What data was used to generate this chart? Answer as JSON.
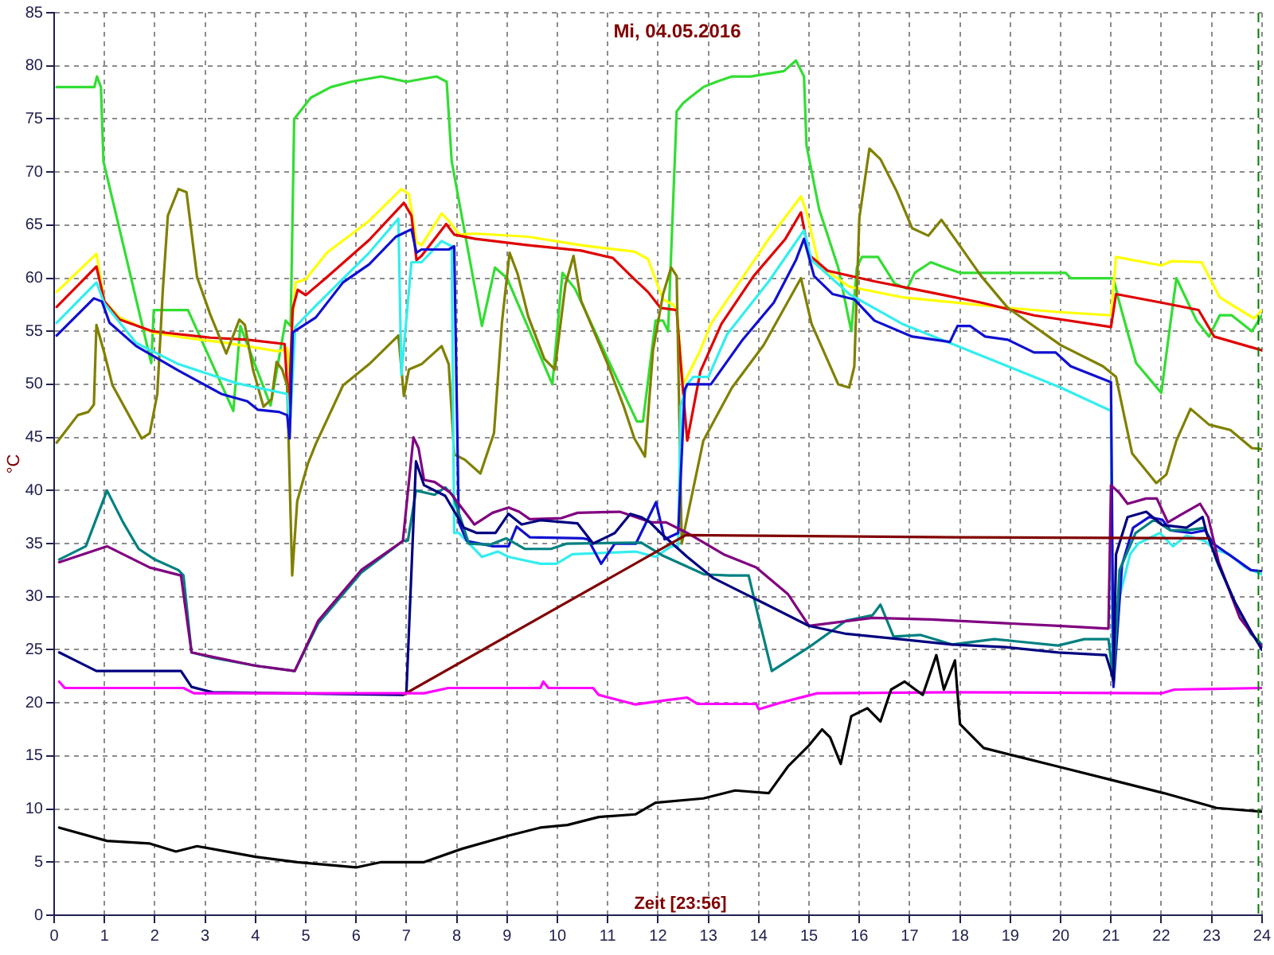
{
  "chart_data": {
    "type": "line",
    "title": "Mi, 04.05.2016",
    "xlabel": "Zeit [23:56]",
    "ylabel": "°C",
    "xlim": [
      0,
      24
    ],
    "xticks": [
      0,
      1,
      2,
      3,
      4,
      5,
      6,
      7,
      8,
      9,
      10,
      11,
      12,
      13,
      14,
      15,
      16,
      17,
      18,
      19,
      20,
      21,
      22,
      23,
      24
    ],
    "ylim": [
      0,
      85
    ],
    "yticks": [
      0,
      5,
      10,
      15,
      20,
      25,
      30,
      35,
      40,
      45,
      50,
      55,
      60,
      65,
      70,
      75,
      80,
      85
    ],
    "grid": true,
    "marker": "none",
    "ref_lines": [
      {
        "axis": "x",
        "value": 23.93,
        "color": "#008000",
        "line_style": "dashed"
      }
    ],
    "series": [
      {
        "color": "#000000",
        "x": [
          0.1,
          1.05,
          1.9,
          2.42,
          2.84,
          4.0,
          4.83,
          6.0,
          6.5,
          7.35,
          8.1,
          9.03,
          9.66,
          10.2,
          10.82,
          11.55,
          11.95,
          12.9,
          13.53,
          14.2,
          14.58,
          15.0,
          15.26,
          15.42,
          15.63,
          15.84,
          16.16,
          16.42,
          16.63,
          16.9,
          17.26,
          17.53,
          17.68,
          17.9,
          18.0,
          18.47,
          19.1,
          19.95,
          21.0,
          22.05,
          23.1,
          24
        ],
        "values": [
          8.25,
          7,
          6.75,
          6,
          6.5,
          5.5,
          5,
          4.5,
          5,
          5,
          6.25,
          7.5,
          8.25,
          8.5,
          9.25,
          9.5,
          10.6,
          11,
          11.75,
          11.5,
          14,
          16,
          17.5,
          16.75,
          14.25,
          18.75,
          19.5,
          18.25,
          21.25,
          22,
          20.75,
          24.5,
          21.25,
          24,
          18,
          15.75,
          15,
          14,
          12.75,
          11.5,
          10.1,
          9.75
        ]
      },
      {
        "color": "#ff00ff",
        "x": [
          0.1,
          0.21,
          2.57,
          2.78,
          7.35,
          7.83,
          9.66,
          9.72,
          9.82,
          10.71,
          10.82,
          11.55,
          12.16,
          12.58,
          12.79,
          13.95,
          14.0,
          14.42,
          15.16,
          17.84,
          22.0,
          22.26,
          24
        ],
        "values": [
          22,
          21.4,
          21.4,
          20.9,
          20.9,
          21.4,
          21.4,
          22,
          21.4,
          21.4,
          20.75,
          19.85,
          20.25,
          20.5,
          19.9,
          19.9,
          19.4,
          20,
          20.9,
          21,
          20.9,
          21.25,
          21.4
        ]
      },
      {
        "color": "#800000",
        "x": [
          6.95,
          12.55,
          17.9,
          22.93
        ],
        "values": [
          20.8,
          35.8,
          35.6,
          35.5
        ]
      },
      {
        "color": "#000080",
        "x": [
          0.1,
          0.42,
          0.84,
          2.52,
          2.73,
          3.15,
          6.93,
          7.0,
          7.19,
          7.35,
          7.77,
          8.14,
          8.4,
          8.77,
          9.03,
          9.29,
          9.66,
          10.4,
          10.71,
          11.14,
          11.45,
          11.66,
          11.84,
          12.05,
          12.58,
          13.1,
          13.63,
          14.16,
          15.0,
          15.74,
          16.8,
          17.84,
          18.9,
          19.95,
          20.9,
          21.0,
          21.05,
          21.1,
          21.33,
          21.7,
          22.02,
          22.5,
          22.82,
          22.9,
          23.14,
          23.46,
          23.78,
          24
        ],
        "values": [
          24.75,
          24,
          23,
          23,
          21.5,
          21,
          20.75,
          21,
          42.75,
          40.5,
          39.5,
          36.5,
          36,
          36,
          37.8,
          36.8,
          37.2,
          36.9,
          35,
          36,
          37.8,
          37.5,
          37,
          36,
          33.75,
          31.75,
          30.5,
          29.25,
          27.25,
          26.5,
          26,
          25.5,
          25.25,
          24.75,
          24.5,
          23,
          22,
          34,
          37.5,
          38,
          36.75,
          36.5,
          37.5,
          36,
          33,
          29.5,
          26.75,
          25
        ]
      },
      {
        "color": "#800080",
        "x": [
          0.1,
          1.05,
          1.9,
          2.52,
          2.73,
          4.0,
          4.78,
          5.25,
          6.1,
          6.93,
          7.14,
          7.24,
          7.35,
          7.56,
          7.87,
          8.35,
          8.71,
          9.03,
          9.24,
          9.45,
          10.08,
          10.4,
          11.24,
          11.87,
          12.16,
          12.58,
          13.3,
          13.95,
          14.58,
          15.0,
          16.26,
          17.42,
          18.9,
          19.95,
          20.95,
          21.0,
          21.17,
          21.33,
          21.7,
          21.91,
          22.13,
          22.4,
          22.77,
          22.93,
          23.14,
          23.56,
          24
        ],
        "values": [
          33.25,
          34.75,
          32.75,
          32,
          24.75,
          23.5,
          23,
          27.75,
          32.5,
          35.25,
          45,
          44,
          41,
          40.8,
          39.8,
          36.8,
          37.9,
          38.4,
          38,
          37.3,
          37.4,
          37.9,
          38,
          37,
          37,
          36,
          34,
          32.75,
          30.25,
          27.25,
          28,
          27.85,
          27.5,
          27.25,
          27,
          40.5,
          39.75,
          38.75,
          39.25,
          39.25,
          37,
          37.75,
          38.75,
          37.5,
          33.25,
          28,
          25.25
        ]
      },
      {
        "color": "#008080",
        "x": [
          0.1,
          0.63,
          1.05,
          1.37,
          1.68,
          2.0,
          2.47,
          2.57,
          2.73,
          3.15,
          4.0,
          4.78,
          5.25,
          6.1,
          6.93,
          7.03,
          7.19,
          7.56,
          7.77,
          7.93,
          8.24,
          8.66,
          8.98,
          9.35,
          9.87,
          10.19,
          11.66,
          12.08,
          12.5,
          12.92,
          13.42,
          13.8,
          14.0,
          14.26,
          15.0,
          15.74,
          16.26,
          16.42,
          16.68,
          17.21,
          17.84,
          18.68,
          19.95,
          20.47,
          20.95,
          21.05,
          21.17,
          21.49,
          21.86,
          22.18,
          22.5,
          22.87,
          23.09,
          23.46,
          23.78,
          24
        ],
        "values": [
          33.5,
          34.75,
          40,
          37,
          34.5,
          33.5,
          32.5,
          32,
          24.75,
          24.25,
          23.5,
          23,
          27.5,
          32.25,
          35.25,
          35.3,
          40,
          39.6,
          40.3,
          39.5,
          35,
          34.9,
          35.5,
          34.5,
          34.5,
          35,
          35.1,
          33.9,
          33,
          32.1,
          32,
          32,
          28,
          23,
          25.25,
          27.75,
          28.25,
          29.25,
          26.25,
          26.4,
          25.5,
          26,
          25.4,
          26,
          26,
          22,
          32.5,
          36,
          37.25,
          36.25,
          36.25,
          36.5,
          33.5,
          29.5,
          26.5,
          25.5
        ]
      },
      {
        "color": "#1010d0",
        "x": [
          0.05,
          0.79,
          0.95,
          1.1,
          1.63,
          2.47,
          3.32,
          3.84,
          4.05,
          4.47,
          4.63,
          4.68,
          4.74,
          5.2,
          5.74,
          6.26,
          6.79,
          7.1,
          7.2,
          7.3,
          7.84,
          7.95,
          8.04,
          8.2,
          8.72,
          9.03,
          9.19,
          9.45,
          10.5,
          10.61,
          10.87,
          11.14,
          11.56,
          11.96,
          12.13,
          12.4,
          12.53,
          12.58,
          13.05,
          13.68,
          14.3,
          14.74,
          14.9,
          15.1,
          15.47,
          15.9,
          16.3,
          17.05,
          17.8,
          17.95,
          18.2,
          18.5,
          18.95,
          19.47,
          19.9,
          20.2,
          21.0,
          21.05,
          21.22,
          21.44,
          21.76,
          22.02,
          22.18,
          22.6,
          22.87,
          23.03,
          23.56,
          23.78,
          24
        ],
        "values": [
          54.6,
          58.1,
          57.8,
          55.8,
          53.6,
          51.3,
          49.1,
          48.4,
          47.6,
          47.4,
          47.1,
          44.9,
          54.9,
          56.3,
          59.6,
          61.3,
          63.9,
          64.6,
          62.4,
          62.7,
          62.7,
          63,
          37,
          35.25,
          34.75,
          34.75,
          36.6,
          35.6,
          35.5,
          35.4,
          33.1,
          35,
          35,
          38.9,
          35.4,
          36,
          49.5,
          50,
          50,
          54.2,
          57.7,
          61.7,
          63.7,
          60.2,
          58.5,
          58,
          56,
          54.5,
          54,
          55.5,
          55.5,
          54.5,
          54.2,
          53,
          53,
          51.7,
          50.2,
          21.5,
          33,
          36.5,
          37.5,
          37.25,
          36.25,
          36,
          36.25,
          35,
          33.25,
          32.5,
          32.4
        ]
      },
      {
        "color": "#33eeee",
        "x": [
          0.05,
          0.84,
          1.0,
          1.63,
          2.47,
          3.63,
          4.63,
          4.68,
          4.79,
          5.2,
          6.26,
          6.84,
          6.9,
          7.1,
          7.3,
          7.7,
          7.9,
          7.95,
          8.04,
          8.5,
          8.82,
          9.03,
          9.66,
          9.98,
          10.3,
          11.55,
          11.95,
          12.26,
          12.4,
          12.45,
          12.58,
          12.7,
          13.0,
          13.37,
          14.2,
          14.9,
          15.05,
          15.8,
          16.85,
          17.9,
          18.95,
          20.0,
          21.0,
          21.03,
          21.17,
          21.38,
          21.54,
          21.97,
          22.23,
          22.5,
          22.87,
          23.03,
          23.35,
          23.67,
          24
        ],
        "values": [
          55.8,
          59.6,
          57.6,
          53.9,
          51.9,
          50.1,
          49.1,
          45.6,
          55.4,
          57.4,
          62.4,
          65.6,
          50.9,
          61.5,
          61.5,
          63.5,
          63,
          36,
          36,
          33.75,
          34.25,
          33.75,
          33.1,
          33.1,
          34,
          34.25,
          33.75,
          34.75,
          34.75,
          48,
          50,
          50.7,
          50.7,
          54.7,
          59.7,
          64.5,
          61.7,
          58.5,
          55.7,
          53.7,
          51.7,
          49.7,
          47.5,
          24,
          30,
          34,
          35,
          36,
          34.75,
          35.75,
          35.25,
          34.5,
          34,
          32.75,
          32.1
        ]
      },
      {
        "color": "#808000",
        "x": [
          0.05,
          0.47,
          0.68,
          0.79,
          0.84,
          1.0,
          1.16,
          1.74,
          1.9,
          2.05,
          2.16,
          2.26,
          2.47,
          2.63,
          2.84,
          3.1,
          3.42,
          3.68,
          3.79,
          3.95,
          4.16,
          4.32,
          4.42,
          4.53,
          4.63,
          4.73,
          4.83,
          5.04,
          5.2,
          5.74,
          6.26,
          6.84,
          6.95,
          7.05,
          7.3,
          7.7,
          7.84,
          7.95,
          8.16,
          8.47,
          8.74,
          8.9,
          9.05,
          9.21,
          9.42,
          9.74,
          9.95,
          10.16,
          10.32,
          10.47,
          11.0,
          11.32,
          11.53,
          11.74,
          11.9,
          12.1,
          12.26,
          12.37,
          12.47,
          12.9,
          13.47,
          14.1,
          14.84,
          15.05,
          15.58,
          15.8,
          15.9,
          16.0,
          16.2,
          16.42,
          16.74,
          17.05,
          17.37,
          17.63,
          17.9,
          18.42,
          18.95,
          20.0,
          20.84,
          21.1,
          21.42,
          21.9,
          22.1,
          22.3,
          22.58,
          22.95,
          23.37,
          23.8,
          24
        ],
        "values": [
          44.5,
          47.1,
          47.4,
          48.1,
          55.6,
          52.9,
          49.9,
          44.9,
          45.4,
          49.1,
          58.9,
          65.9,
          68.4,
          68.1,
          60.1,
          56.6,
          52.9,
          56.1,
          55.6,
          51.4,
          47.9,
          48.6,
          52.1,
          51.4,
          49.9,
          32,
          39,
          42.5,
          44.4,
          49.9,
          51.9,
          54.6,
          48.9,
          51.4,
          51.9,
          53.6,
          51.9,
          43.4,
          42.9,
          41.6,
          45.4,
          55.9,
          62.4,
          60.4,
          56.4,
          52.4,
          51.4,
          59.4,
          62.1,
          57.9,
          51.9,
          47.9,
          44.9,
          43.2,
          53.2,
          58.5,
          61,
          60.2,
          35,
          44.7,
          49.7,
          53.7,
          60,
          55.7,
          50,
          49.7,
          51.7,
          65.7,
          72.2,
          71.2,
          68.2,
          64.7,
          64,
          65.5,
          63.7,
          60.2,
          57.2,
          53.7,
          51.7,
          50.7,
          43.5,
          40.7,
          41.5,
          44.7,
          47.7,
          46.2,
          45.7,
          44,
          43.9
        ]
      },
      {
        "color": "#e00000",
        "x": [
          0.05,
          0.84,
          1.0,
          1.3,
          1.95,
          3.1,
          3.84,
          4.58,
          4.66,
          4.74,
          4.84,
          5.0,
          5.42,
          6.26,
          6.95,
          7.1,
          7.2,
          7.3,
          7.79,
          7.95,
          8.37,
          9.42,
          10.47,
          11.1,
          11.53,
          11.8,
          12.05,
          12.37,
          12.45,
          12.58,
          12.84,
          13.26,
          13.9,
          14.53,
          14.84,
          15.0,
          15.37,
          16.3,
          17.37,
          18.42,
          19.47,
          21.0,
          21.1,
          22.0,
          22.74,
          23.05,
          24
        ],
        "values": [
          57.3,
          61.1,
          57.8,
          56.1,
          55,
          54.4,
          54.2,
          53.8,
          47.5,
          57.1,
          58.9,
          58.4,
          60.1,
          63.6,
          67.1,
          65.9,
          61.7,
          62.1,
          65.1,
          64.1,
          63.7,
          63.1,
          62.6,
          61.9,
          59.9,
          58.7,
          57.2,
          57,
          52,
          44.7,
          51.2,
          55.7,
          60.2,
          63.7,
          66.2,
          62.2,
          60.7,
          59.7,
          58.7,
          57.7,
          56.5,
          55.4,
          58.5,
          57.7,
          57,
          54.5,
          53.2
        ]
      },
      {
        "color": "#ffff00",
        "x": [
          0.05,
          0.84,
          1.0,
          1.3,
          1.95,
          2.58,
          3.42,
          4.47,
          4.63,
          4.68,
          4.74,
          4.8,
          5.0,
          5.42,
          6.26,
          6.9,
          7.05,
          7.2,
          7.3,
          7.7,
          7.84,
          8.05,
          8.37,
          9.42,
          10.47,
          11.53,
          11.8,
          12.1,
          12.3,
          12.37,
          12.5,
          12.84,
          13.05,
          13.7,
          14.2,
          14.84,
          14.95,
          15.2,
          15.8,
          16.85,
          17.9,
          18.95,
          20.0,
          21.0,
          21.1,
          22.0,
          22.2,
          22.8,
          23.16,
          23.84,
          24
        ],
        "values": [
          58.7,
          62.3,
          57.8,
          56.3,
          54.9,
          54.4,
          53.9,
          53.1,
          53.4,
          51,
          56.4,
          59.6,
          59.9,
          62.4,
          65.4,
          68.4,
          67.9,
          63.4,
          63.1,
          66.1,
          65.4,
          64.1,
          64.2,
          63.9,
          63.1,
          62.5,
          61.8,
          58,
          57.5,
          57,
          50,
          53.2,
          55.7,
          60.2,
          63.7,
          67.7,
          66.2,
          61.2,
          59.2,
          58.2,
          57.7,
          57.2,
          56.8,
          56.5,
          62,
          61.2,
          61.6,
          61.5,
          58.2,
          56.2,
          57
        ]
      },
      {
        "color": "#33dd33",
        "x": [
          0.05,
          0.8,
          0.85,
          0.93,
          0.98,
          1.93,
          1.98,
          2.66,
          3.56,
          3.7,
          4.3,
          4.6,
          4.7,
          4.77,
          5.1,
          5.5,
          5.9,
          6.5,
          7.0,
          7.6,
          7.8,
          7.9,
          8.5,
          8.76,
          9.0,
          9.9,
          10.1,
          10.35,
          11.58,
          11.7,
          11.95,
          12.1,
          12.2,
          12.37,
          12.5,
          12.63,
          12.9,
          13.16,
          13.47,
          13.84,
          14.1,
          14.5,
          14.74,
          14.9,
          14.95,
          15.2,
          15.58,
          15.84,
          15.95,
          16.05,
          16.37,
          16.7,
          16.95,
          17.1,
          17.42,
          17.7,
          18.0,
          20.1,
          20.2,
          21.05,
          21.15,
          21.5,
          22.0,
          22.16,
          22.3,
          22.7,
          22.95,
          23.16,
          23.4,
          23.8,
          24
        ],
        "values": [
          78,
          78,
          79,
          78,
          71,
          52,
          57,
          57,
          47.5,
          55.5,
          48,
          56,
          55.5,
          75,
          77,
          78,
          78.5,
          79,
          78.5,
          79,
          78.5,
          71,
          55.5,
          61,
          60,
          50,
          60.5,
          59,
          46.5,
          46.5,
          56,
          56,
          55,
          75.7,
          76.5,
          77,
          78,
          78.5,
          79,
          79,
          79.2,
          79.5,
          80.5,
          79,
          72.5,
          66.5,
          61,
          55,
          61,
          62,
          62,
          59.5,
          59,
          60.5,
          61.5,
          61,
          60.5,
          60.5,
          60,
          60,
          58,
          52,
          49.2,
          55,
          60,
          56,
          54.5,
          56.5,
          56.5,
          55,
          56.5
        ]
      }
    ]
  }
}
